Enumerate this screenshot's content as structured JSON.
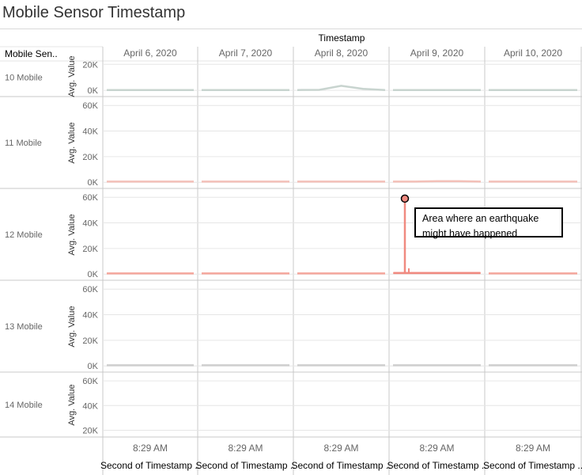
{
  "title": "Mobile Sensor Timestamp",
  "colors": {
    "series": [
      "#c8d4cf",
      "#f3c0b8",
      "#f4a69b",
      "#cfcfcf",
      "#cfcfcf"
    ],
    "spike": "#f08a80",
    "annotation_marker": "#f08a80",
    "grid": "#e6e6e6",
    "divider": "#c8c8c8"
  },
  "chart_data": {
    "type": "line",
    "column_header": "Timestamp",
    "row_header": "Mobile Sen..",
    "columns": [
      "April 6, 2020",
      "April 7, 2020",
      "April 8, 2020",
      "April 9, 2020",
      "April 10, 2020"
    ],
    "x_tick_label": "8:29 AM",
    "x_axis_label": "Second of Timestamp ..",
    "y_axis_label": "Avg. Value",
    "y_tick_labels": [
      "0K",
      "20K",
      "40K",
      "60K"
    ],
    "rows": [
      {
        "label": "10 Mobile",
        "ylim": [
          -500,
          22000
        ],
        "ticks": [
          0,
          20000
        ],
        "series_values": [
          [
            300,
            300,
            300,
            300,
            300
          ],
          [
            300,
            300,
            300,
            300,
            300
          ],
          [
            300,
            400,
            3500,
            1200,
            300
          ],
          [
            300,
            300,
            300,
            300,
            300
          ],
          [
            300,
            300,
            300,
            300,
            300
          ]
        ]
      },
      {
        "label": "11 Mobile",
        "ylim": [
          -500,
          62000
        ],
        "ticks": [
          0,
          20000,
          40000,
          60000
        ],
        "series_values": [
          [
            500,
            500,
            500,
            500,
            500
          ],
          [
            500,
            500,
            500,
            500,
            500
          ],
          [
            500,
            500,
            500,
            500,
            500
          ],
          [
            500,
            500,
            800,
            800,
            500
          ],
          [
            500,
            500,
            500,
            500,
            500
          ]
        ]
      },
      {
        "label": "12 Mobile",
        "ylim": [
          -500,
          62000
        ],
        "ticks": [
          0,
          20000,
          40000,
          60000
        ],
        "series_values": [
          [
            500,
            500,
            500,
            500,
            500
          ],
          [
            500,
            500,
            500,
            500,
            500
          ],
          [
            500,
            500,
            500,
            500,
            500
          ],
          [
            800,
            800,
            800,
            800,
            800
          ],
          [
            500,
            500,
            500,
            500,
            500
          ]
        ],
        "spike": {
          "column": 3,
          "value": 59000
        }
      },
      {
        "label": "13 Mobile",
        "ylim": [
          -500,
          62000
        ],
        "ticks": [
          0,
          20000,
          40000,
          60000
        ],
        "series_values": [
          [
            500,
            500,
            500,
            500,
            500
          ],
          [
            500,
            500,
            500,
            500,
            500
          ],
          [
            500,
            500,
            500,
            500,
            500
          ],
          [
            500,
            500,
            500,
            500,
            500
          ],
          [
            500,
            500,
            500,
            500,
            500
          ]
        ]
      },
      {
        "label": "14 Mobile",
        "ylim": [
          19000,
          62000
        ],
        "ticks": [
          20000,
          40000,
          60000
        ],
        "series_values": [
          [],
          [],
          [],
          [],
          []
        ]
      }
    ],
    "annotation": "Area where an earthquake might have happened",
    "grid": true,
    "legend": "none"
  }
}
